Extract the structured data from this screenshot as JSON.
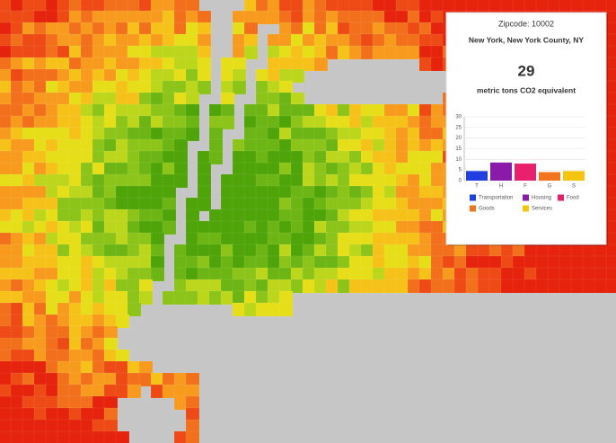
{
  "popup": {
    "zipcode": "Zipcode: 10002",
    "place": "New York, New York County, NY",
    "total": "29",
    "unit": "metric tons CO2 equivalent"
  },
  "chart_data": {
    "type": "bar",
    "categories": [
      "T",
      "H",
      "F",
      "G",
      "S"
    ],
    "values": [
      4.5,
      8.5,
      8,
      4,
      4.5
    ],
    "colors": [
      "#1f3fe0",
      "#8a1aa8",
      "#e8206e",
      "#f2741c",
      "#f5c40f"
    ],
    "legend": [
      "Transportation",
      "Housing",
      "Food",
      "Goods",
      "Services"
    ],
    "ylim": [
      0,
      30
    ],
    "yticks": [
      0,
      5,
      10,
      15,
      20,
      25,
      30
    ]
  }
}
